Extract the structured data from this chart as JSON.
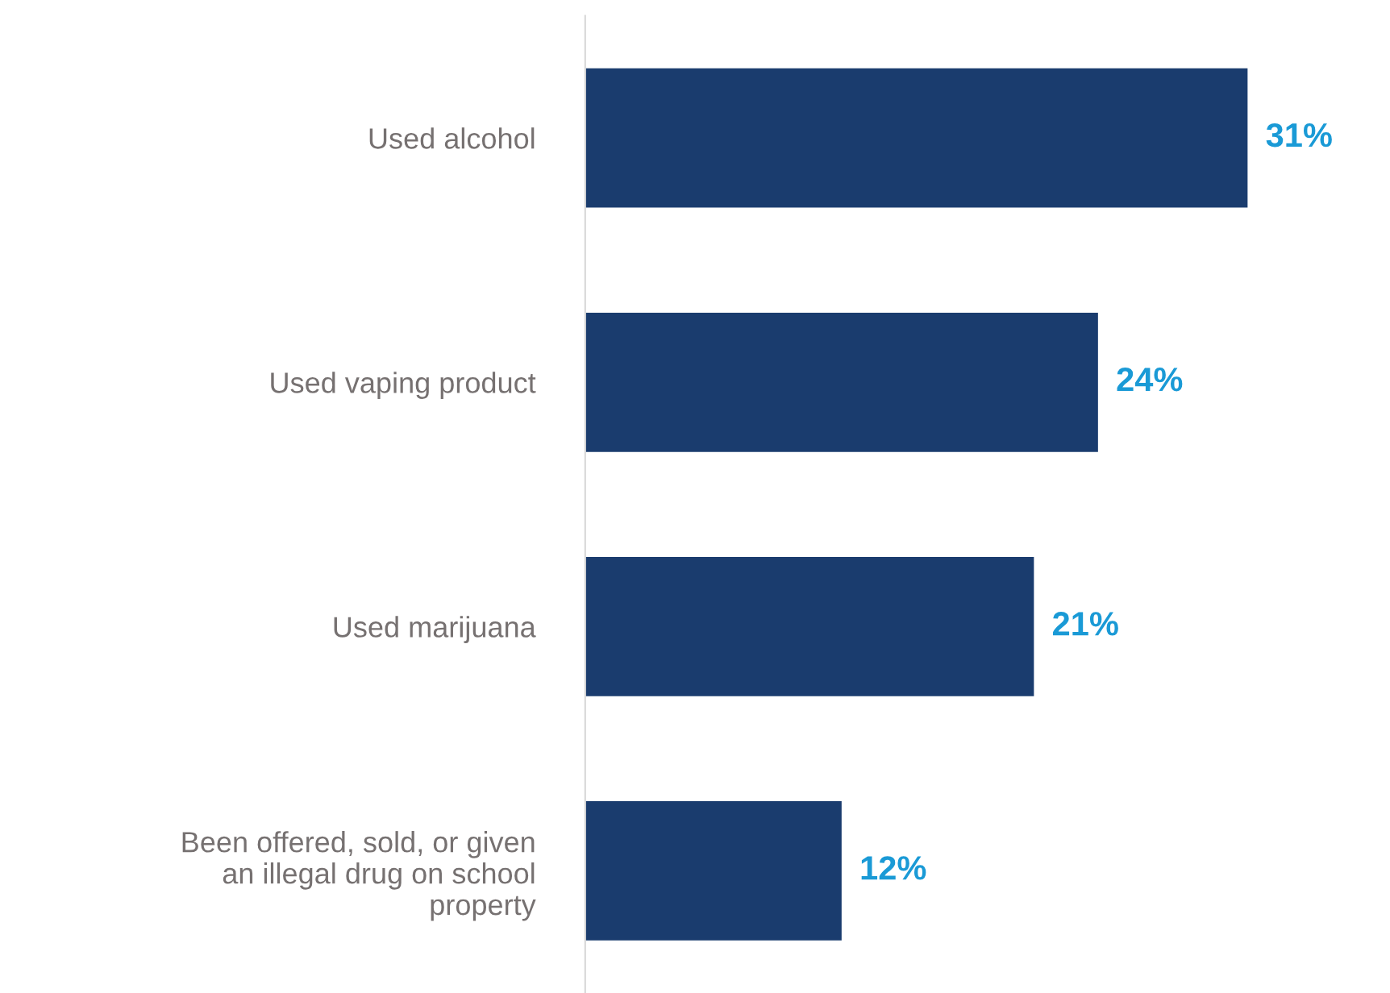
{
  "chart_data": {
    "type": "bar",
    "orientation": "horizontal",
    "categories": [
      "Used alcohol",
      "Used vaping product",
      "Used marijuana",
      "Been offered, sold, or given\nan illegal drug on school\nproperty"
    ],
    "values": [
      31,
      24,
      21,
      12
    ],
    "color": "#1a3c6e",
    "value_labels": [
      "31%",
      "24%",
      "21%",
      "12%"
    ],
    "grid": false,
    "legend": false
  }
}
